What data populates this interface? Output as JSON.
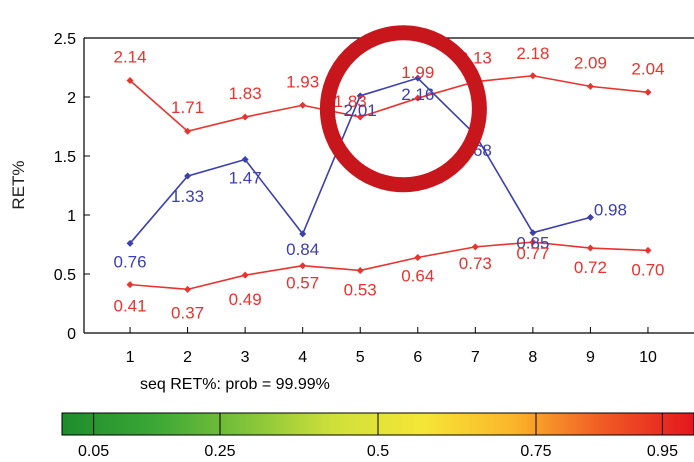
{
  "chart_data": {
    "type": "line",
    "ylabel": "RET%",
    "xlabel": "",
    "x": [
      1,
      2,
      3,
      4,
      5,
      6,
      7,
      8,
      9,
      10
    ],
    "xlim": [
      0.2,
      10.8
    ],
    "ylim": [
      0,
      2.5
    ],
    "yticks": [
      "0",
      "0.5",
      "1",
      "1.5",
      "2",
      "2.5"
    ],
    "xticks": [
      "1",
      "2",
      "3",
      "4",
      "5",
      "6",
      "7",
      "8",
      "9",
      "10"
    ],
    "series": [
      {
        "color": "#e8332e",
        "values": [
          2.14,
          1.71,
          1.83,
          1.93,
          1.83,
          1.99,
          2.13,
          2.18,
          2.09,
          2.04
        ],
        "labels": [
          "2.14",
          "1.71",
          "1.83",
          "1.93",
          "1.83",
          "1.99",
          "2.13",
          "2.18",
          "2.09",
          "2.04"
        ]
      },
      {
        "color": "#3b3fb0",
        "values": [
          0.76,
          1.33,
          1.47,
          0.84,
          2.01,
          2.16,
          1.68,
          0.85,
          0.98,
          null
        ],
        "labels": [
          "0.76",
          "1.33",
          "1.47",
          "0.84",
          "2.01",
          "2.16",
          "1.68",
          "0.85",
          "0.98",
          null
        ]
      },
      {
        "color": "#e8332e",
        "values": [
          0.41,
          0.37,
          0.49,
          0.57,
          0.53,
          0.64,
          0.73,
          0.77,
          0.72,
          0.7
        ],
        "labels": [
          "0.41",
          "0.37",
          "0.49",
          "0.57",
          "0.53",
          "0.64",
          "0.73",
          "0.77",
          "0.72",
          "0.70"
        ]
      }
    ],
    "grid": false,
    "highlight": {
      "shape": "ring",
      "color": "#c8161d",
      "center_x": 5.75,
      "center_y": 1.9
    },
    "annotation": "seq RET%: prob = 99.99%",
    "colorbar": {
      "ticks": [
        "0.05",
        "0.25",
        "0.5",
        "0.75",
        "0.95"
      ],
      "tick_values": [
        0.05,
        0.25,
        0.5,
        0.75,
        0.95
      ],
      "colors": [
        "#1e8c2c",
        "#3aa636",
        "#7ec23a",
        "#cfe03a",
        "#f5e636",
        "#fbb52a",
        "#f05a24",
        "#e4161e"
      ]
    }
  }
}
